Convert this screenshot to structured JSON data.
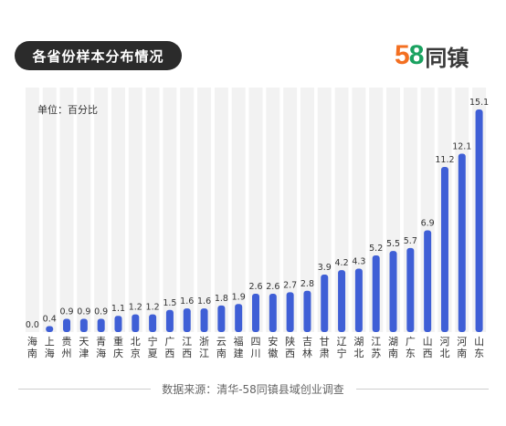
{
  "title": "各省份样本分布情况",
  "logo": {
    "num_5": "5",
    "num_8": "8",
    "text": "同镇"
  },
  "unit_label": "单位：百分比",
  "source": "数据来源：清华-58同镇县域创业调查",
  "colors": {
    "bar": "#3f5fd6",
    "column_bg": "#f2f2f2",
    "text": "#333333"
  },
  "chart_data": {
    "type": "bar",
    "categories": [
      "海南",
      "上海",
      "贵州",
      "天津",
      "青海",
      "重庆",
      "北京",
      "宁夏",
      "广西",
      "江西",
      "浙江",
      "云南",
      "福建",
      "四川",
      "安徽",
      "陕西",
      "吉林",
      "甘肃",
      "辽宁",
      "湖北",
      "江苏",
      "湖南",
      "广东",
      "山西",
      "河北",
      "河南",
      "山东"
    ],
    "values": [
      0.0,
      0.4,
      0.9,
      0.9,
      0.9,
      1.1,
      1.2,
      1.2,
      1.5,
      1.6,
      1.6,
      1.8,
      1.9,
      2.6,
      2.6,
      2.7,
      2.8,
      3.9,
      4.2,
      4.3,
      5.2,
      5.5,
      5.7,
      6.9,
      11.2,
      12.1,
      15.1
    ],
    "value_labels": [
      "0.0",
      "0.4",
      "0.9",
      "0.9",
      "0.9",
      "1.1",
      "1.2",
      "1.2",
      "1.5",
      "1.6",
      "1.6",
      "1.8",
      "1.9",
      "2.6",
      "2.6",
      "2.7",
      "2.8",
      "3.9",
      "4.2",
      "4.3",
      "5.2",
      "5.5",
      "5.7",
      "6.9",
      "11.2",
      "12.1",
      "15.1"
    ],
    "ylim": [
      0,
      15.1
    ],
    "grid": false,
    "title": "各省份样本分布情况",
    "ylabel": "单位：百分比"
  }
}
